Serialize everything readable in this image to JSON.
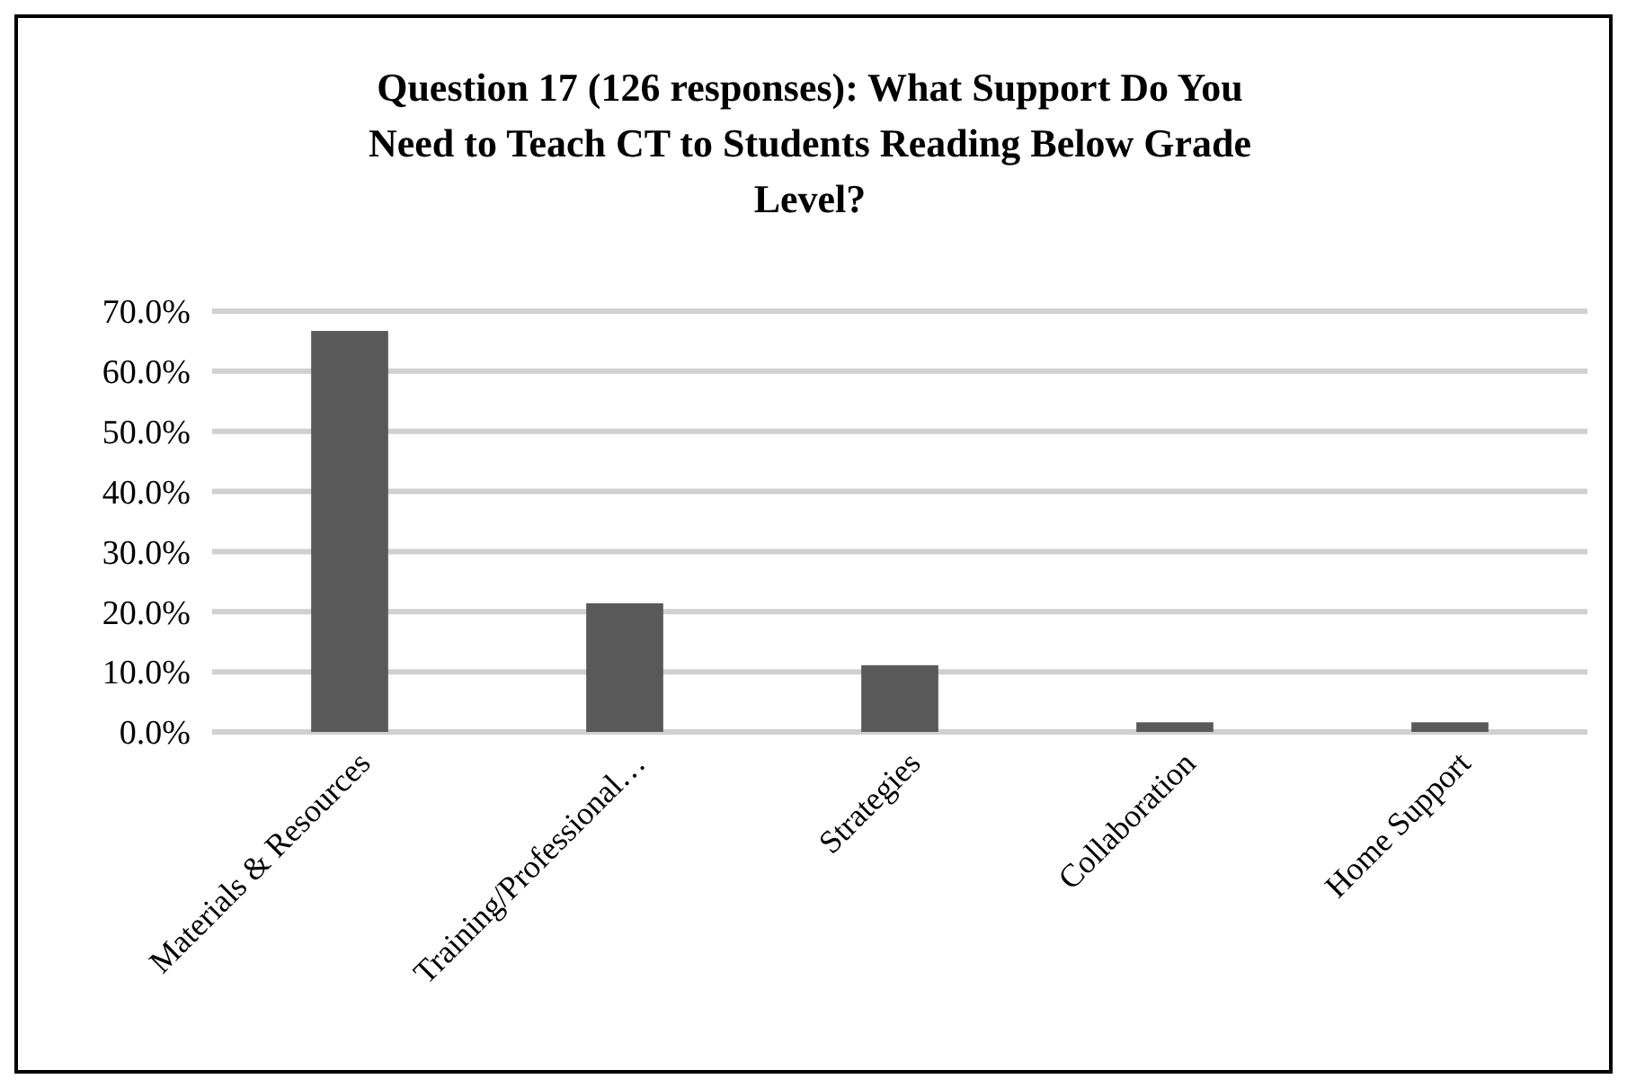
{
  "chart_data": {
    "type": "bar",
    "title": "Question 17 (126 responses): What Support Do You Need to Teach CT to Students Reading Below Grade Level?",
    "categories": [
      "Materials & Resources",
      "Training/Professional…",
      "Strategies",
      "Collaboration",
      "Home Support"
    ],
    "values": [
      66.7,
      21.4,
      11.1,
      1.6,
      1.6
    ],
    "color": "#595959",
    "ylim": [
      0,
      70
    ],
    "yticks": [
      {
        "value": 0,
        "label": "0.0%"
      },
      {
        "value": 10,
        "label": "10.0%"
      },
      {
        "value": 20,
        "label": "20.0%"
      },
      {
        "value": 30,
        "label": "30.0%"
      },
      {
        "value": 40,
        "label": "40.0%"
      },
      {
        "value": 50,
        "label": "50.0%"
      },
      {
        "value": 60,
        "label": "60.0%"
      },
      {
        "value": 70,
        "label": "70.0%"
      }
    ],
    "grid": true
  }
}
